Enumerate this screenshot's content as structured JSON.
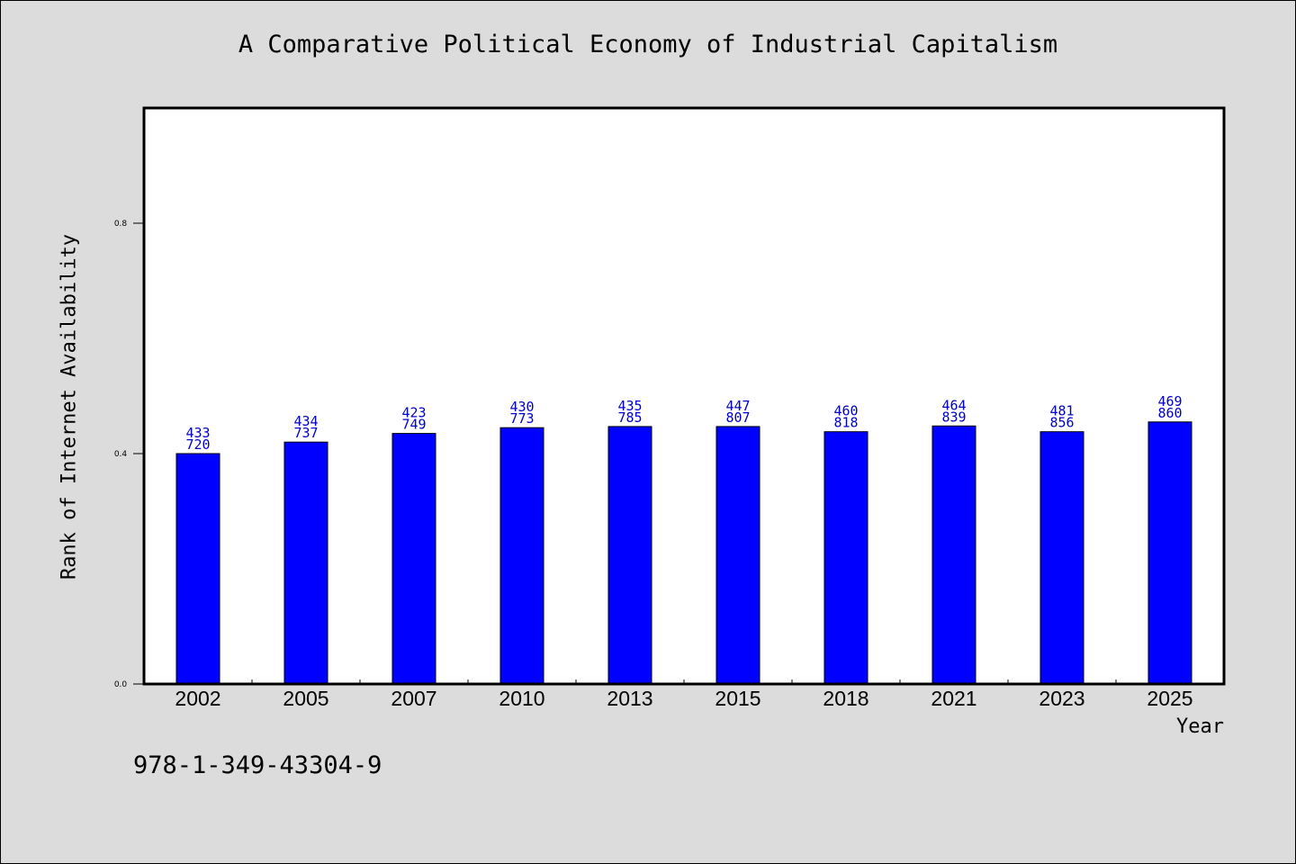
{
  "colors": {
    "background": "#dcdcdc",
    "plot_background": "#ffffff",
    "bar": "#0000ff",
    "data_label": "#0000cc"
  },
  "footnote": "978-1-349-43304-9",
  "chart_data": {
    "type": "bar",
    "title": "A Comparative Political Economy of Industrial Capitalism",
    "xlabel": "Year",
    "ylabel": "Rank of Internet Availability",
    "ylim": [
      0,
      1
    ],
    "yticks": [
      0.0,
      0.4,
      0.8
    ],
    "ytick_labels": [
      "0.0",
      "0.4",
      "0.8"
    ],
    "grid": false,
    "categories": [
      "2002",
      "2005",
      "2007",
      "2010",
      "2013",
      "2015",
      "2018",
      "2021",
      "2023",
      "2025"
    ],
    "values": [
      0.4,
      0.42,
      0.435,
      0.445,
      0.447,
      0.447,
      0.438,
      0.448,
      0.438,
      0.455
    ],
    "data_labels_top": [
      "433",
      "434",
      "423",
      "430",
      "435",
      "447",
      "460",
      "464",
      "481",
      "469"
    ],
    "data_labels_bottom": [
      "720",
      "737",
      "749",
      "773",
      "785",
      "807",
      "818",
      "839",
      "856",
      "860"
    ]
  }
}
